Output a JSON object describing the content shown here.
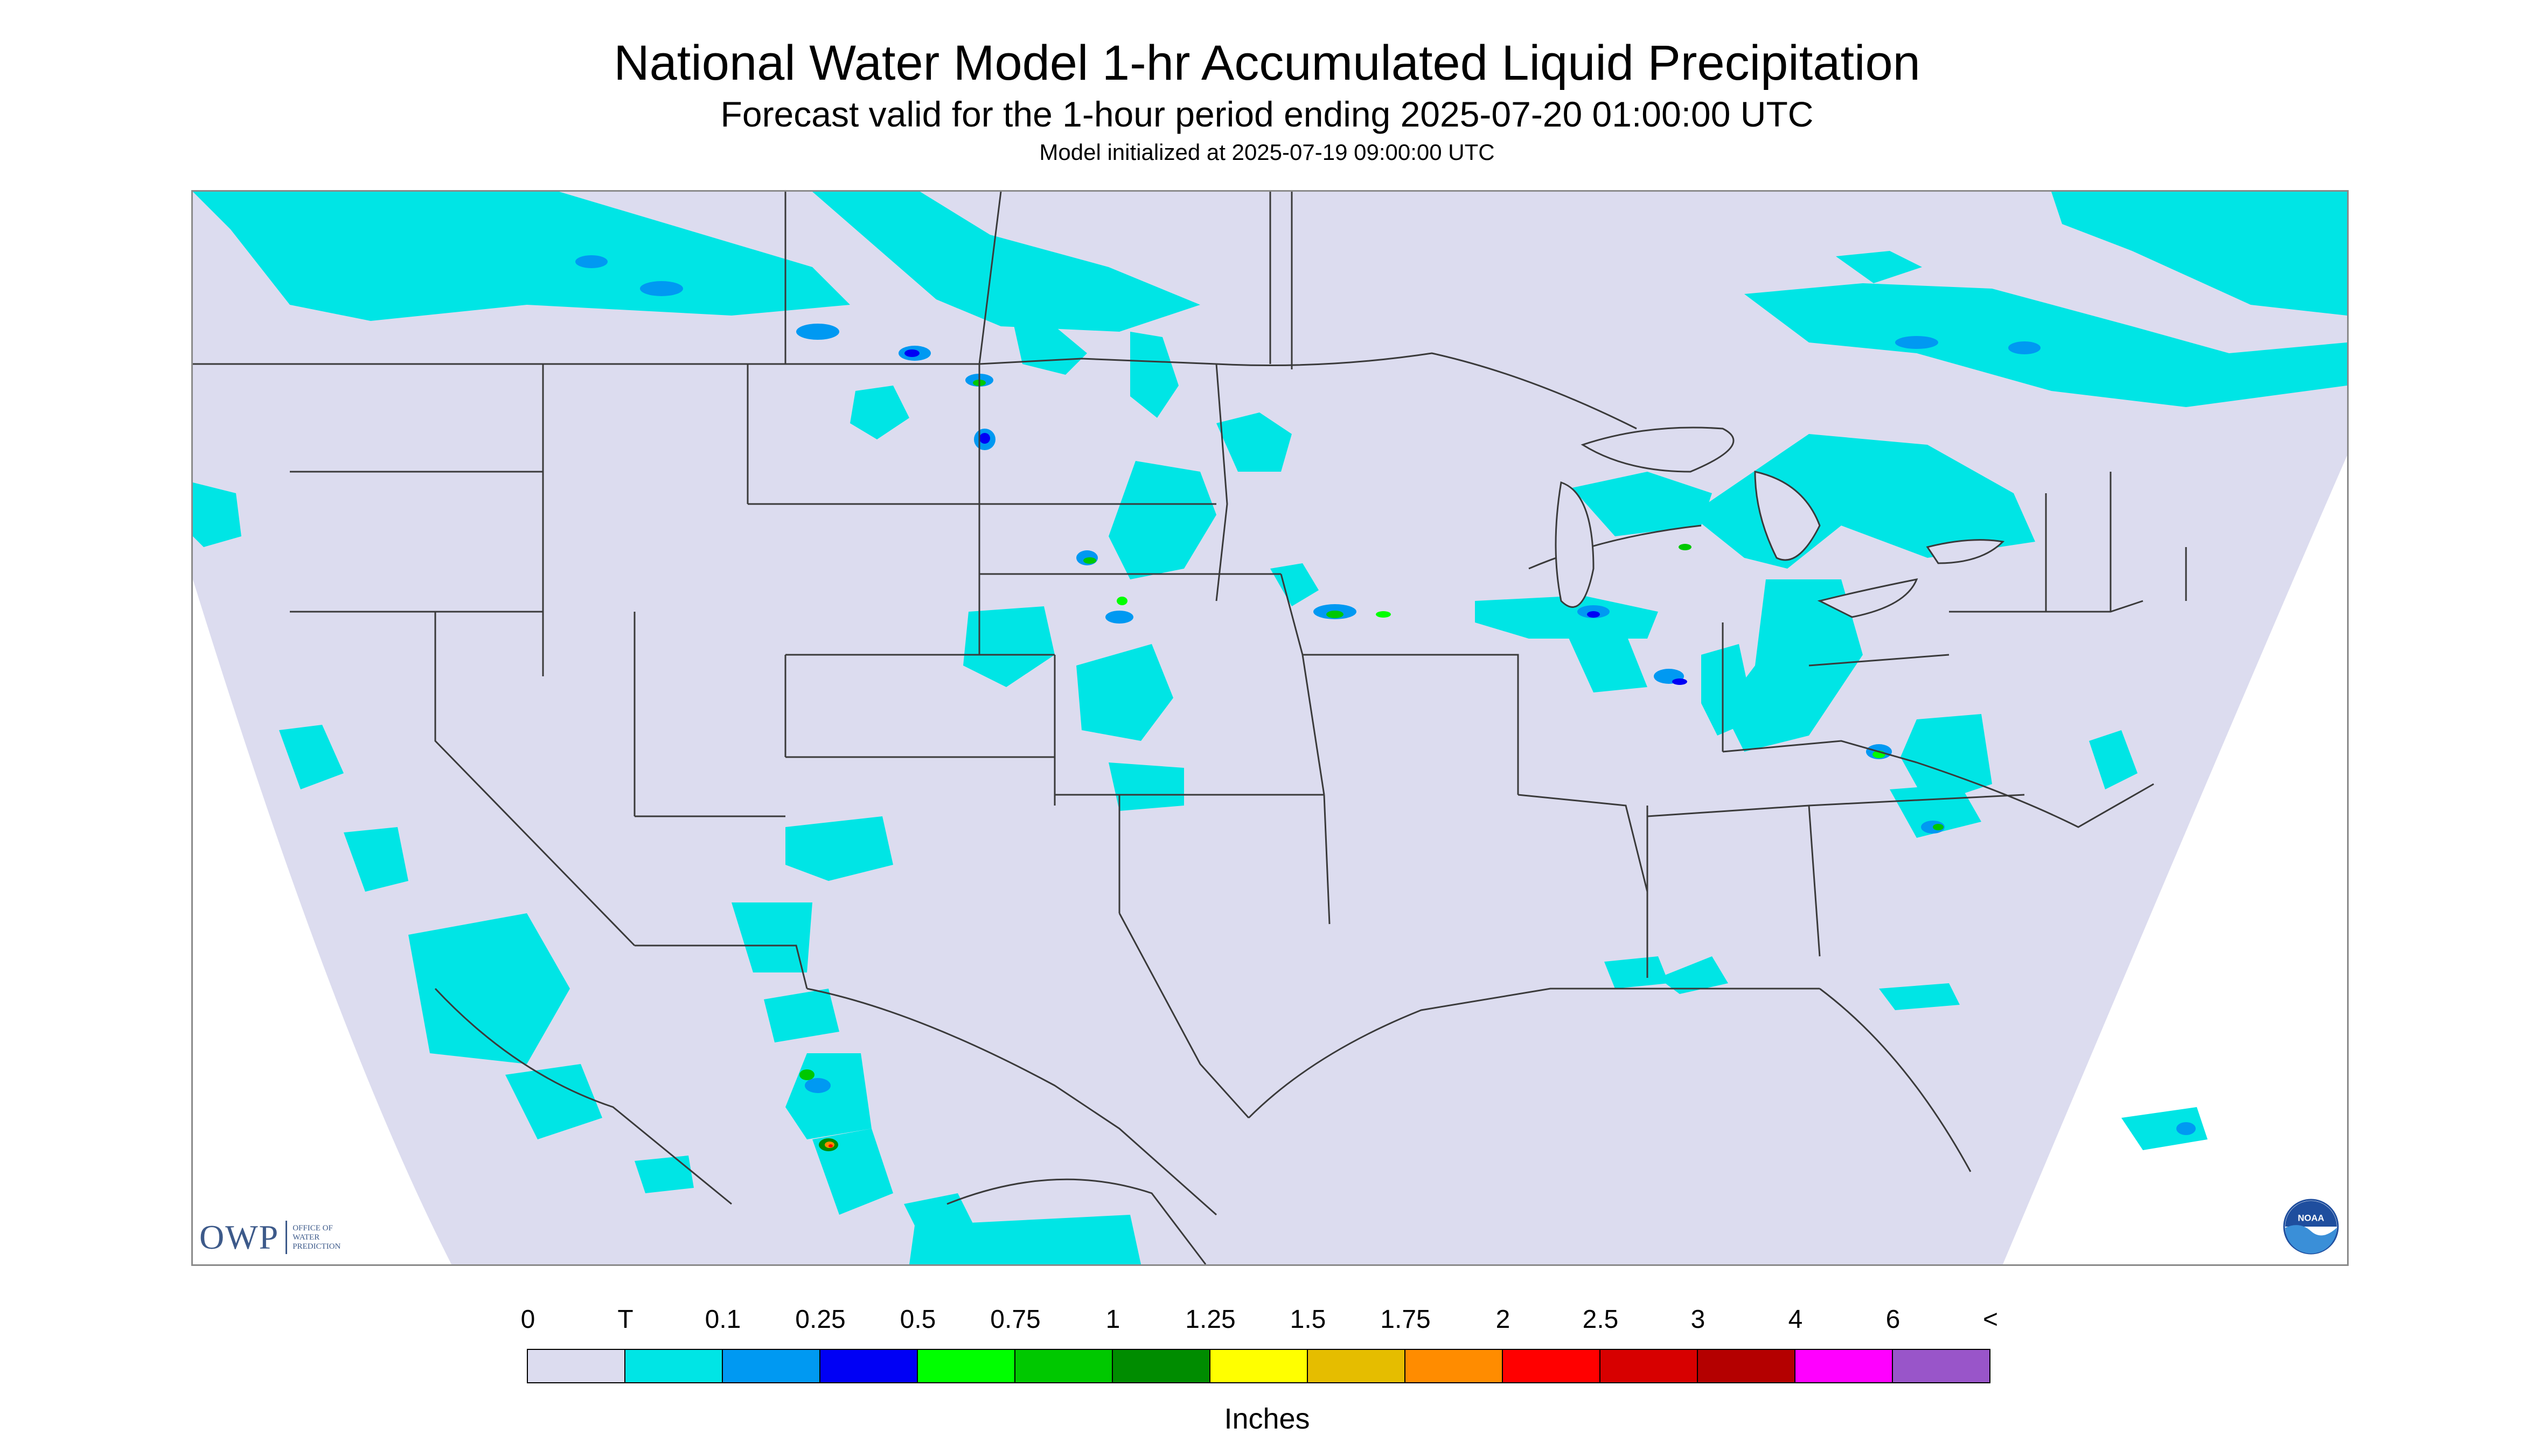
{
  "title": "National Water Model 1-hr Accumulated Liquid Precipitation",
  "subtitle": "Forecast valid for the 1-hour period ending 2025-07-20 01:00:00 UTC",
  "init_line": "Model initialized at 2025-07-19 09:00:00 UTC",
  "logos": {
    "owp_mark": "OWP",
    "owp_text": [
      "OFFICE OF",
      "WATER",
      "PREDICTION"
    ],
    "noaa_text": "NOAA"
  },
  "colors": {
    "background_domain": "#dcdcef",
    "outside_domain": "#ffffff",
    "boundary_lines": "#3a3a3a"
  },
  "legend": {
    "unit": "Inches",
    "labels": [
      "0",
      "T",
      "0.1",
      "0.25",
      "0.5",
      "0.75",
      "1",
      "1.25",
      "1.5",
      "1.75",
      "2",
      "2.5",
      "3",
      "4",
      "6",
      "<"
    ],
    "bins": [
      {
        "color": "#dcdcef"
      },
      {
        "color": "#00e5e5"
      },
      {
        "color": "#0099f2"
      },
      {
        "color": "#0000f5"
      },
      {
        "color": "#00ff00"
      },
      {
        "color": "#00c800"
      },
      {
        "color": "#008c00"
      },
      {
        "color": "#ffff00"
      },
      {
        "color": "#e5bd00"
      },
      {
        "color": "#ff8c00"
      },
      {
        "color": "#ff0000"
      },
      {
        "color": "#d70000"
      },
      {
        "color": "#b40000"
      },
      {
        "color": "#ff00ff"
      },
      {
        "color": "#9955c9"
      }
    ]
  }
}
